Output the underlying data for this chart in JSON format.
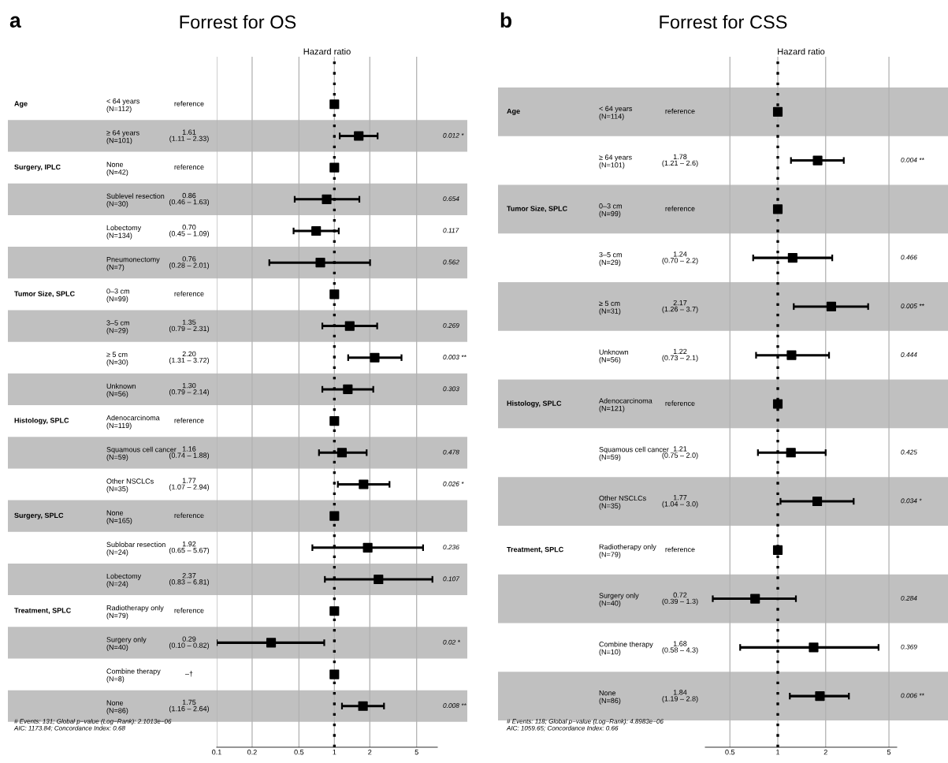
{
  "chart_data": [
    {
      "type": "scatter",
      "orientation": "horizontal",
      "title": "Forrest for OS",
      "xlabel": "Hazard ratio",
      "color": "#000000",
      "marker": "square",
      "log": "x",
      "grid": "x",
      "categories": [
        "< 64 years\n(N=112)",
        "≥ 64 years\n(N=101)",
        "None\n(N=42)",
        "Sublevel resection\n(N=30)",
        "Lobectomy\n(N=134)",
        "Pneumonectomy\n(N=7)",
        "0–3 cm\n(N=99)",
        "3–5 cm\n(N=29)",
        "≥ 5 cm\n(N=30)",
        "Unknown\n(N=56)",
        "Adenocarcinoma\n(N=119)",
        "Squamous cell cancer\n(N=59)",
        "Other NSCLCs\n(N=35)",
        "None\n(N=165)",
        "Sublobar resection\n(N=24)",
        "Lobectomy\n(N=24)",
        "Radiotherapy only\n(N=79)",
        "Surgery only\n(N=40)",
        "Combine therapy\n(N=8)",
        "None\n(N=86)"
      ],
      "values": [
        1,
        1.61,
        1,
        0.86,
        0.7,
        0.76,
        1,
        1.35,
        2.2,
        1.3,
        1,
        1.16,
        1.77,
        1,
        1.92,
        2.37,
        1,
        0.29,
        1,
        1.75
      ],
      "errors": [
        null,
        [
          1.11,
          2.33
        ],
        null,
        [
          0.46,
          1.63
        ],
        [
          0.45,
          1.09
        ],
        [
          0.28,
          2.01
        ],
        null,
        [
          0.79,
          2.31
        ],
        [
          1.31,
          3.72
        ],
        [
          0.79,
          2.14
        ],
        null,
        [
          0.74,
          1.88
        ],
        [
          1.07,
          2.94
        ],
        null,
        [
          0.65,
          5.67
        ],
        [
          0.83,
          6.81
        ],
        null,
        [
          0.1,
          0.82
        ],
        null,
        [
          1.16,
          2.64
        ]
      ],
      "xlim": [
        0.1,
        7.5
      ],
      "xticks": [
        0.1,
        0.2,
        0.5,
        1,
        2,
        5
      ],
      "ref_lines": [
        {
          "axis": "x",
          "value": 1,
          "line_style": "dotted"
        }
      ],
      "annotations": [
        "a",
        "# Events: 131; Global p−value (Log−Rank): 2.1013e−06\nAIC: 1173.84; Concordance Index: 0.68",
        "Age",
        "Surgery, IPLC",
        "Tumor Size, SPLC",
        "Histology, SPLC",
        "Surgery, SPLC",
        "Treatment, SPLC",
        "0.012 *",
        "0.654",
        "0.117",
        "0.562",
        "0.269",
        "0.003 **",
        "0.303",
        "0.478",
        "0.026 *",
        "0.236",
        "0.107",
        "0.02 *",
        "0.008 **",
        "reference",
        "1.61\n(1.11 – 2.33)",
        "reference",
        "0.86\n(0.46 – 1.63)",
        "0.70\n(0.45 – 1.09)",
        "0.76\n(0.28 – 2.01)",
        "reference",
        "1.35\n(0.79 – 2.31)",
        "2.20\n(1.31 – 3.72)",
        "1.30\n(0.79 – 2.14)",
        "reference",
        "1.16\n(0.74 – 1.88)",
        "1.77\n(1.07 – 2.94)",
        "reference",
        "1.92\n(0.65 – 5.67)",
        "2.37\n(0.83 – 6.81)",
        "reference",
        "0.29\n(0.10 – 0.82)",
        "–†",
        "1.75\n(1.16 – 2.64)"
      ]
    },
    {
      "type": "scatter",
      "orientation": "horizontal",
      "title": "Forrest for CSS",
      "xlabel": "Hazard ratio",
      "color": "#000000",
      "marker": "square",
      "log": "x",
      "grid": "x",
      "categories": [
        "< 64 years\n(N=114)",
        "≥ 64 years\n(N=101)",
        "0–3 cm\n(N=99)",
        "3–5 cm\n(N=29)",
        "≥ 5 cm\n(N=31)",
        "Unknown\n(N=56)",
        "Adenocarcinoma\n(N=121)",
        "Squamous cell cancer\n(N=59)",
        "Other NSCLCs\n(N=35)",
        "Radiotherapy only\n(N=79)",
        "Surgery only\n(N=40)",
        "Combine therapy\n(N=10)",
        "None\n(N=86)"
      ],
      "values": [
        1,
        1.78,
        1,
        1.24,
        2.17,
        1.22,
        1,
        1.21,
        1.77,
        1,
        0.72,
        1.68,
        1.84
      ],
      "errors": [
        null,
        [
          1.21,
          2.6
        ],
        null,
        [
          0.7,
          2.2
        ],
        [
          1.26,
          3.7
        ],
        [
          0.73,
          2.1
        ],
        null,
        [
          0.75,
          2.0
        ],
        [
          1.04,
          3.0
        ],
        null,
        [
          0.39,
          1.3
        ],
        [
          0.58,
          4.3
        ],
        [
          1.19,
          2.8
        ]
      ],
      "xlim": [
        0.35,
        5.6
      ],
      "xticks": [
        0.5,
        1,
        2,
        5
      ],
      "ref_lines": [
        {
          "axis": "x",
          "value": 1,
          "line_style": "dotted"
        }
      ],
      "annotations": [
        "b",
        "# Events: 118; Global p−value (Log−Rank): 4.8983e−06\nAIC: 1059.65; Concordance Index: 0.66",
        "Age",
        "Tumor Size, SPLC",
        "Histology, SPLC",
        "Treatment, SPLC",
        "0.004 **",
        "0.466",
        "0.005 **",
        "0.444",
        "0.425",
        "0.034 *",
        "0.284",
        "0.369",
        "0.006 **",
        "reference",
        "1.78\n(1.21 – 2.6)",
        "reference",
        "1.24\n(0.70 – 2.2)",
        "2.17\n(1.26 – 3.7)",
        "1.22\n(0.73 – 2.1)",
        "reference",
        "1.21\n(0.75 – 2.0)",
        "1.77\n(1.04 – 3.0)",
        "reference",
        "0.72\n(0.39 – 1.3)",
        "1.68\n(0.58 – 4.3)",
        "1.84\n(1.19 – 2.8)"
      ]
    }
  ]
}
